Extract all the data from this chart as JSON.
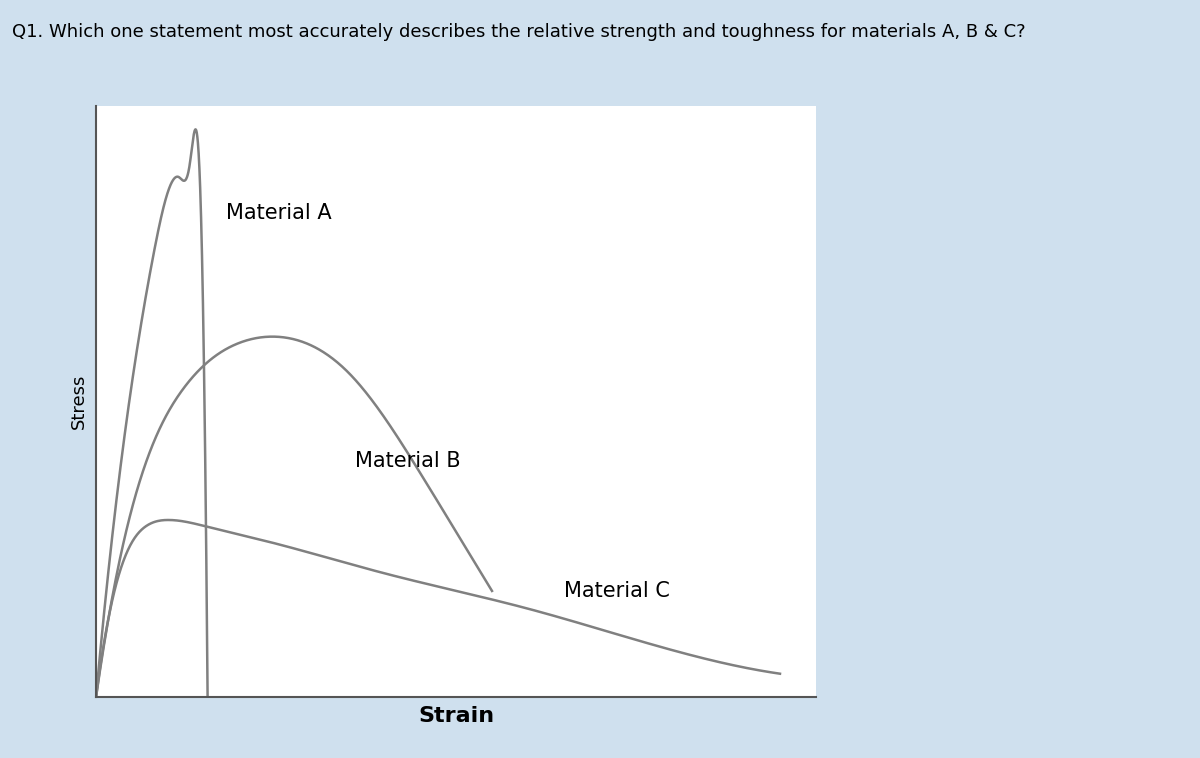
{
  "title": "Q1. Which one statement most accurately describes the relative strength and toughness for materials A, B & C?",
  "xlabel": "Strain",
  "ylabel": "Stress",
  "background_color": "#cfe0ee",
  "plot_bg_color": "#ffffff",
  "line_color": "#808080",
  "title_fontsize": 13,
  "xlabel_fontsize": 16,
  "ylabel_fontsize": 13,
  "annotation_fontsize": 15,
  "material_A_label": "Material A",
  "material_B_label": "Material B",
  "material_C_label": "Material C",
  "figwidth": 12.0,
  "figheight": 7.58
}
